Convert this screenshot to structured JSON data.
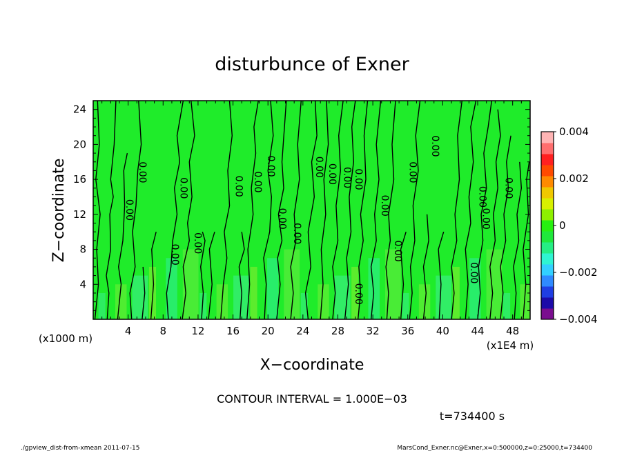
{
  "chart_data": {
    "type": "heatmap",
    "title": "disturbunce of Exner",
    "xlabel": "X−coordinate",
    "ylabel": "Z−coordinate",
    "x_unit_label": "(x1E4 m)",
    "y_unit_label": "(x1000 m)",
    "xlim": [
      0,
      50
    ],
    "ylim": [
      0,
      25
    ],
    "x_ticks": [
      4,
      8,
      12,
      16,
      20,
      24,
      28,
      32,
      36,
      40,
      44,
      48
    ],
    "y_ticks": [
      4,
      8,
      12,
      16,
      20,
      24
    ],
    "colorbar": {
      "range": [
        -0.004,
        0.004
      ],
      "tick_values": [
        0.004,
        0.002,
        0,
        -0.002,
        -0.004
      ],
      "tick_labels": [
        "0.004",
        "0.002",
        "0",
        "−0.002",
        "−0.004"
      ],
      "colors": [
        "#7a0d8f",
        "#1c0ba8",
        "#1f3ee3",
        "#2f8aff",
        "#32d0ff",
        "#2ff5d2",
        "#25ee84",
        "#1fe83c",
        "#27f010",
        "#8ef000",
        "#d8f000",
        "#f0c800",
        "#ff8a00",
        "#ff4a00",
        "#ff2020",
        "#ff6e6e",
        "#ffb4b4"
      ]
    },
    "background_color": "#1fec2a",
    "contour_label": "0.00",
    "contour_interval_text": "CONTOUR INTERVAL = 1.000E−03",
    "time_text": "t=734400 s",
    "footer_left": "./gpview_dist-from-xmean  2011-07-15",
    "footer_right": "MarsCond_Exner.nc@Exner,x=0:500000,z=0:25000,t=734400",
    "contour_labels": [
      {
        "x": 3.8,
        "y": 12.5
      },
      {
        "x": 5.3,
        "y": 16.8
      },
      {
        "x": 9.0,
        "y": 7.4
      },
      {
        "x": 10.0,
        "y": 15.0
      },
      {
        "x": 11.6,
        "y": 8.7
      },
      {
        "x": 16.3,
        "y": 15.2
      },
      {
        "x": 18.5,
        "y": 15.7
      },
      {
        "x": 20.0,
        "y": 17.5
      },
      {
        "x": 21.3,
        "y": 11.5
      },
      {
        "x": 23.0,
        "y": 9.8
      },
      {
        "x": 25.5,
        "y": 17.4
      },
      {
        "x": 27.0,
        "y": 16.6
      },
      {
        "x": 28.7,
        "y": 16.2
      },
      {
        "x": 30.0,
        "y": 16.0
      },
      {
        "x": 30.0,
        "y": 2.9
      },
      {
        "x": 33.0,
        "y": 13.0
      },
      {
        "x": 34.5,
        "y": 7.8
      },
      {
        "x": 36.2,
        "y": 16.8
      },
      {
        "x": 38.8,
        "y": 19.8
      },
      {
        "x": 43.2,
        "y": 5.3
      },
      {
        "x": 44.2,
        "y": 14.0
      },
      {
        "x": 44.6,
        "y": 11.5
      },
      {
        "x": 47.2,
        "y": 15.0
      }
    ],
    "contour_lines": [
      [
        [
          0.2,
          0
        ],
        [
          0.6,
          4
        ],
        [
          0.4,
          8
        ],
        [
          0.8,
          12
        ],
        [
          0.3,
          16
        ],
        [
          0.7,
          20
        ],
        [
          0.5,
          25
        ]
      ],
      [
        [
          1.6,
          0
        ],
        [
          1.8,
          3
        ],
        [
          1.5,
          5
        ],
        [
          2.0,
          8
        ],
        [
          1.9,
          12
        ],
        [
          2.3,
          14
        ],
        [
          2.0,
          16
        ],
        [
          2.4,
          20
        ],
        [
          2.6,
          25
        ]
      ],
      [
        [
          2.8,
          0
        ],
        [
          3.2,
          4
        ],
        [
          2.9,
          6
        ],
        [
          3.4,
          9
        ],
        [
          3.6,
          13
        ],
        [
          3.5,
          17
        ],
        [
          3.9,
          19
        ]
      ],
      [
        [
          4.4,
          0
        ],
        [
          4.2,
          3
        ],
        [
          4.8,
          6
        ],
        [
          4.5,
          10
        ],
        [
          4.9,
          13
        ],
        [
          5.1,
          17
        ],
        [
          5.5,
          20
        ],
        [
          5.2,
          25
        ]
      ],
      [
        [
          5.6,
          0
        ],
        [
          5.9,
          3
        ],
        [
          5.7,
          6
        ]
      ],
      [
        [
          6.6,
          0
        ],
        [
          6.9,
          4
        ],
        [
          6.7,
          8
        ],
        [
          7.2,
          10
        ]
      ],
      [
        [
          8.6,
          0
        ],
        [
          8.4,
          3
        ],
        [
          8.9,
          6
        ],
        [
          9.1,
          9
        ],
        [
          9.6,
          12
        ],
        [
          9.3,
          15
        ],
        [
          9.9,
          18
        ],
        [
          9.6,
          21
        ],
        [
          10.3,
          25
        ]
      ],
      [
        [
          10.2,
          0
        ],
        [
          10.6,
          3
        ],
        [
          10.3,
          6
        ],
        [
          11.0,
          9
        ],
        [
          10.8,
          11
        ],
        [
          11.3,
          14
        ],
        [
          11.0,
          18
        ],
        [
          11.6,
          21
        ],
        [
          11.2,
          25
        ]
      ],
      [
        [
          12.4,
          0
        ],
        [
          12.6,
          3
        ],
        [
          12.3,
          6
        ],
        [
          12.8,
          9
        ],
        [
          12.5,
          10
        ]
      ],
      [
        [
          13.2,
          0
        ],
        [
          13.6,
          4
        ],
        [
          13.3,
          8
        ],
        [
          13.9,
          10
        ]
      ],
      [
        [
          14.6,
          0
        ],
        [
          14.9,
          4
        ],
        [
          15.3,
          7
        ],
        [
          15.0,
          10
        ],
        [
          15.6,
          13
        ],
        [
          15.4,
          17
        ],
        [
          15.9,
          21
        ],
        [
          15.6,
          25
        ]
      ],
      [
        [
          16.8,
          0
        ],
        [
          17.0,
          3
        ],
        [
          16.7,
          6
        ],
        [
          17.3,
          8
        ],
        [
          17.0,
          10
        ]
      ],
      [
        [
          17.6,
          0
        ],
        [
          17.9,
          4
        ],
        [
          17.7,
          8
        ],
        [
          18.3,
          12
        ],
        [
          18.1,
          15
        ],
        [
          18.6,
          19
        ],
        [
          18.4,
          22
        ],
        [
          18.9,
          25
        ]
      ],
      [
        [
          19.6,
          0
        ],
        [
          19.8,
          4
        ],
        [
          19.5,
          7
        ],
        [
          20.2,
          10
        ],
        [
          20.4,
          14
        ],
        [
          20.0,
          17
        ],
        [
          20.6,
          21
        ],
        [
          20.3,
          25
        ]
      ],
      [
        [
          21.0,
          0
        ],
        [
          21.4,
          4
        ],
        [
          21.1,
          7
        ],
        [
          21.6,
          9
        ],
        [
          21.2,
          12
        ],
        [
          21.8,
          15
        ],
        [
          21.6,
          18
        ],
        [
          22.1,
          25
        ]
      ],
      [
        [
          22.6,
          0
        ],
        [
          22.9,
          3
        ],
        [
          22.6,
          6
        ],
        [
          23.2,
          9
        ],
        [
          23.0,
          12
        ],
        [
          23.6,
          16
        ],
        [
          23.4,
          20
        ],
        [
          23.8,
          25
        ]
      ],
      [
        [
          24.6,
          0
        ],
        [
          24.3,
          3
        ],
        [
          24.9,
          6
        ],
        [
          24.6,
          10
        ],
        [
          25.3,
          14
        ],
        [
          25.0,
          18
        ],
        [
          25.6,
          21
        ],
        [
          25.4,
          25
        ]
      ],
      [
        [
          26.0,
          0
        ],
        [
          26.3,
          4
        ],
        [
          26.1,
          8
        ],
        [
          26.6,
          12
        ],
        [
          26.4,
          16
        ],
        [
          26.9,
          20
        ],
        [
          26.7,
          25
        ]
      ],
      [
        [
          27.4,
          0
        ],
        [
          27.7,
          3
        ],
        [
          27.4,
          6
        ],
        [
          28.0,
          9
        ],
        [
          27.8,
          13
        ],
        [
          28.3,
          17
        ],
        [
          28.1,
          21
        ],
        [
          28.6,
          25
        ]
      ],
      [
        [
          28.8,
          0
        ],
        [
          29.2,
          4
        ],
        [
          29.0,
          7
        ],
        [
          29.5,
          10
        ],
        [
          29.3,
          14
        ],
        [
          29.8,
          18
        ],
        [
          29.6,
          22
        ],
        [
          30.0,
          25
        ]
      ],
      [
        [
          30.3,
          0
        ],
        [
          30.6,
          3
        ],
        [
          30.4,
          6
        ],
        [
          30.9,
          9
        ],
        [
          30.6,
          12
        ],
        [
          31.2,
          16
        ],
        [
          31.0,
          21
        ],
        [
          31.4,
          25
        ]
      ],
      [
        [
          31.8,
          0
        ],
        [
          32.1,
          3
        ],
        [
          31.8,
          6
        ],
        [
          32.4,
          9
        ],
        [
          32.2,
          12
        ],
        [
          32.7,
          16
        ],
        [
          32.4,
          20
        ],
        [
          32.9,
          25
        ]
      ],
      [
        [
          33.6,
          0
        ],
        [
          33.8,
          3
        ],
        [
          33.5,
          6
        ],
        [
          34.0,
          9
        ],
        [
          33.8,
          12
        ],
        [
          34.4,
          16
        ],
        [
          34.2,
          20
        ],
        [
          34.6,
          25
        ]
      ],
      [
        [
          35.2,
          0
        ],
        [
          35.5,
          4
        ],
        [
          35.2,
          8
        ],
        [
          35.8,
          10
        ]
      ],
      [
        [
          36.2,
          0
        ],
        [
          36.5,
          3
        ],
        [
          36.3,
          6
        ],
        [
          36.8,
          9
        ],
        [
          36.6,
          13
        ],
        [
          37.2,
          17
        ],
        [
          36.9,
          21
        ],
        [
          37.4,
          25
        ]
      ],
      [
        [
          37.8,
          0
        ],
        [
          38.1,
          3
        ],
        [
          37.8,
          6
        ],
        [
          38.4,
          9
        ],
        [
          38.2,
          12
        ]
      ],
      [
        [
          39.6,
          0
        ],
        [
          39.8,
          4
        ],
        [
          39.5,
          8
        ],
        [
          40.1,
          10
        ]
      ],
      [
        [
          41.0,
          0
        ],
        [
          41.3,
          3
        ],
        [
          41.0,
          6
        ],
        [
          41.6,
          9
        ],
        [
          41.4,
          12
        ],
        [
          41.9,
          16
        ],
        [
          41.7,
          21
        ],
        [
          42.2,
          25
        ]
      ],
      [
        [
          42.6,
          0
        ],
        [
          42.9,
          4
        ],
        [
          42.6,
          8
        ],
        [
          43.2,
          11
        ],
        [
          43.0,
          14
        ],
        [
          43.5,
          18
        ],
        [
          43.2,
          22
        ],
        [
          43.8,
          25
        ]
      ],
      [
        [
          44.0,
          0
        ],
        [
          44.3,
          3
        ],
        [
          44.1,
          6
        ],
        [
          44.6,
          9
        ],
        [
          44.4,
          12
        ],
        [
          45.0,
          15
        ],
        [
          44.7,
          19
        ],
        [
          45.2,
          22
        ],
        [
          45.6,
          25
        ]
      ],
      [
        [
          45.4,
          0
        ],
        [
          45.7,
          3
        ],
        [
          45.4,
          6
        ],
        [
          46.0,
          9
        ],
        [
          45.8,
          12
        ],
        [
          46.3,
          15
        ],
        [
          46.1,
          18
        ],
        [
          46.6,
          21
        ],
        [
          46.3,
          24
        ]
      ],
      [
        [
          46.6,
          0
        ],
        [
          46.9,
          3
        ],
        [
          46.6,
          6
        ],
        [
          47.2,
          9
        ],
        [
          47.0,
          12
        ],
        [
          47.5,
          15
        ],
        [
          47.3,
          18
        ],
        [
          47.8,
          21
        ]
      ],
      [
        [
          48.2,
          0
        ],
        [
          48.4,
          3
        ],
        [
          48.1,
          6
        ],
        [
          48.7,
          9
        ],
        [
          48.5,
          12
        ],
        [
          49.0,
          15
        ],
        [
          48.8,
          18
        ]
      ],
      [
        [
          49.2,
          0
        ],
        [
          49.5,
          4
        ],
        [
          49.2,
          8
        ],
        [
          49.8,
          12
        ],
        [
          49.6,
          16
        ],
        [
          49.9,
          18
        ]
      ]
    ]
  }
}
